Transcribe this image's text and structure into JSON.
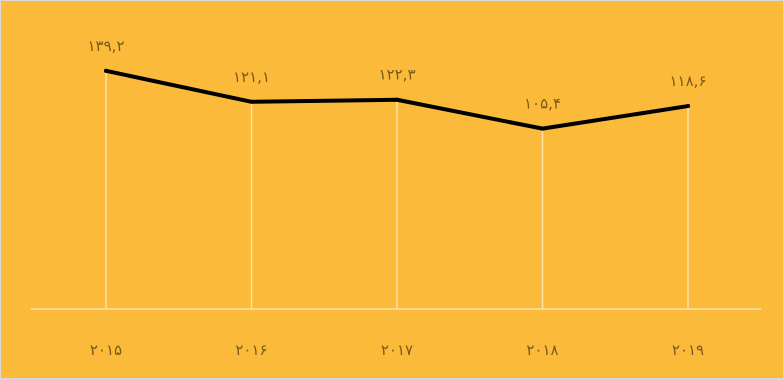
{
  "colors": {
    "background": "#FBBA3A",
    "line": "#000000",
    "gridline": "#FCE3A8",
    "baseline": "#FCE3A8",
    "label_text": "#7A5A18"
  },
  "chart_data": {
    "type": "line",
    "categories": [
      "۲۰۱۵",
      "۲۰۱۶",
      "۲۰۱۷",
      "۲۰۱۸",
      "۲۰۱۹"
    ],
    "values": [
      139.2,
      121.1,
      122.3,
      105.4,
      118.6
    ],
    "value_labels": [
      "۱۳۹,۲",
      "۱۲۱,۱",
      "۱۲۲,۳",
      "۱۰۵,۴",
      "۱۱۸,۶"
    ],
    "title": "",
    "xlabel": "",
    "ylabel": "",
    "ylim": [
      0,
      180
    ],
    "grid": true,
    "legend": "none"
  }
}
